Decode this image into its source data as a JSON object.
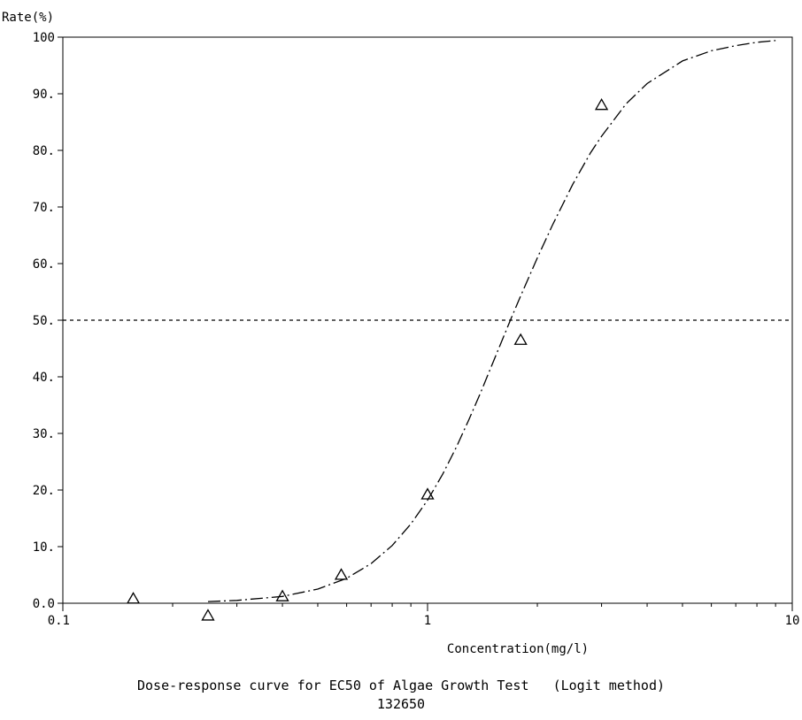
{
  "chart_data": {
    "type": "scatter",
    "title": "Dose-response curve for EC50 of Algae Growth Test   (Logit method)",
    "subtitle": "132650",
    "xlabel": "Concentration(mg/l)",
    "ylabel": "Rate(%)",
    "x_scale": "log",
    "xlim": [
      0.1,
      10
    ],
    "ylim": [
      0,
      100
    ],
    "x_ticks": [
      {
        "value": 0.1,
        "label": "0.1"
      },
      {
        "value": 1,
        "label": "1"
      },
      {
        "value": 10,
        "label": "10"
      }
    ],
    "y_ticks": [
      {
        "value": 0,
        "label": "0.0"
      },
      {
        "value": 10,
        "label": "10."
      },
      {
        "value": 20,
        "label": "20."
      },
      {
        "value": 30,
        "label": "30."
      },
      {
        "value": 40,
        "label": "40."
      },
      {
        "value": 50,
        "label": "50."
      },
      {
        "value": 60,
        "label": "60."
      },
      {
        "value": 70,
        "label": "70."
      },
      {
        "value": 80,
        "label": "80."
      },
      {
        "value": 90,
        "label": "90."
      },
      {
        "value": 100,
        "label": "100"
      }
    ],
    "grid": false,
    "reference_line": {
      "y": 50,
      "style": "dashed"
    },
    "points": {
      "marker": "triangle",
      "x": [
        0.156,
        0.25,
        0.4,
        0.58,
        1.0,
        1.8,
        3.0
      ],
      "y": [
        0.8,
        -2.2,
        1.2,
        5.0,
        19.2,
        46.5,
        88.0
      ]
    },
    "fit_curve": {
      "model": "logit",
      "ec50": 1.68,
      "x": [
        0.25,
        0.3,
        0.4,
        0.5,
        0.6,
        0.7,
        0.8,
        0.9,
        1.0,
        1.1,
        1.2,
        1.3,
        1.4,
        1.5,
        1.6,
        1.7,
        1.8,
        2.0,
        2.2,
        2.5,
        2.8,
        3.0,
        3.5,
        4.0,
        5.0,
        6.0,
        7.0,
        8.0,
        9.0
      ],
      "y": [
        0.3,
        0.5,
        1.2,
        2.5,
        4.4,
        7.0,
        10.2,
        14.0,
        18.2,
        22.8,
        27.6,
        32.5,
        37.3,
        42.0,
        46.4,
        50.5,
        54.3,
        61.0,
        66.8,
        74.0,
        79.6,
        82.5,
        88.2,
        91.8,
        95.8,
        97.6,
        98.5,
        99.1,
        99.4
      ]
    }
  }
}
